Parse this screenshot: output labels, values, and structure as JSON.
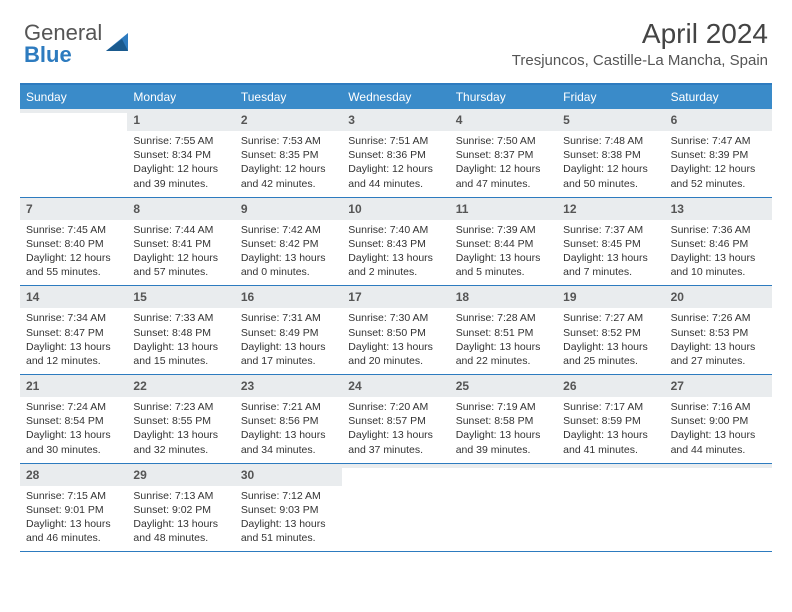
{
  "logo": {
    "word1": "General",
    "word2": "Blue"
  },
  "header": {
    "month_title": "April 2024",
    "location": "Tresjuncos, Castille-La Mancha, Spain"
  },
  "colors": {
    "brand_blue": "#2d7bbf",
    "header_bar": "#3a8bc9",
    "daynum_bg": "#e9ecee",
    "text": "#333333",
    "muted": "#555555"
  },
  "daysOfWeek": [
    "Sunday",
    "Monday",
    "Tuesday",
    "Wednesday",
    "Thursday",
    "Friday",
    "Saturday"
  ],
  "weeks": [
    [
      {
        "n": "",
        "lines": []
      },
      {
        "n": "1",
        "lines": [
          "Sunrise: 7:55 AM",
          "Sunset: 8:34 PM",
          "Daylight: 12 hours",
          "and 39 minutes."
        ]
      },
      {
        "n": "2",
        "lines": [
          "Sunrise: 7:53 AM",
          "Sunset: 8:35 PM",
          "Daylight: 12 hours",
          "and 42 minutes."
        ]
      },
      {
        "n": "3",
        "lines": [
          "Sunrise: 7:51 AM",
          "Sunset: 8:36 PM",
          "Daylight: 12 hours",
          "and 44 minutes."
        ]
      },
      {
        "n": "4",
        "lines": [
          "Sunrise: 7:50 AM",
          "Sunset: 8:37 PM",
          "Daylight: 12 hours",
          "and 47 minutes."
        ]
      },
      {
        "n": "5",
        "lines": [
          "Sunrise: 7:48 AM",
          "Sunset: 8:38 PM",
          "Daylight: 12 hours",
          "and 50 minutes."
        ]
      },
      {
        "n": "6",
        "lines": [
          "Sunrise: 7:47 AM",
          "Sunset: 8:39 PM",
          "Daylight: 12 hours",
          "and 52 minutes."
        ]
      }
    ],
    [
      {
        "n": "7",
        "lines": [
          "Sunrise: 7:45 AM",
          "Sunset: 8:40 PM",
          "Daylight: 12 hours",
          "and 55 minutes."
        ]
      },
      {
        "n": "8",
        "lines": [
          "Sunrise: 7:44 AM",
          "Sunset: 8:41 PM",
          "Daylight: 12 hours",
          "and 57 minutes."
        ]
      },
      {
        "n": "9",
        "lines": [
          "Sunrise: 7:42 AM",
          "Sunset: 8:42 PM",
          "Daylight: 13 hours",
          "and 0 minutes."
        ]
      },
      {
        "n": "10",
        "lines": [
          "Sunrise: 7:40 AM",
          "Sunset: 8:43 PM",
          "Daylight: 13 hours",
          "and 2 minutes."
        ]
      },
      {
        "n": "11",
        "lines": [
          "Sunrise: 7:39 AM",
          "Sunset: 8:44 PM",
          "Daylight: 13 hours",
          "and 5 minutes."
        ]
      },
      {
        "n": "12",
        "lines": [
          "Sunrise: 7:37 AM",
          "Sunset: 8:45 PM",
          "Daylight: 13 hours",
          "and 7 minutes."
        ]
      },
      {
        "n": "13",
        "lines": [
          "Sunrise: 7:36 AM",
          "Sunset: 8:46 PM",
          "Daylight: 13 hours",
          "and 10 minutes."
        ]
      }
    ],
    [
      {
        "n": "14",
        "lines": [
          "Sunrise: 7:34 AM",
          "Sunset: 8:47 PM",
          "Daylight: 13 hours",
          "and 12 minutes."
        ]
      },
      {
        "n": "15",
        "lines": [
          "Sunrise: 7:33 AM",
          "Sunset: 8:48 PM",
          "Daylight: 13 hours",
          "and 15 minutes."
        ]
      },
      {
        "n": "16",
        "lines": [
          "Sunrise: 7:31 AM",
          "Sunset: 8:49 PM",
          "Daylight: 13 hours",
          "and 17 minutes."
        ]
      },
      {
        "n": "17",
        "lines": [
          "Sunrise: 7:30 AM",
          "Sunset: 8:50 PM",
          "Daylight: 13 hours",
          "and 20 minutes."
        ]
      },
      {
        "n": "18",
        "lines": [
          "Sunrise: 7:28 AM",
          "Sunset: 8:51 PM",
          "Daylight: 13 hours",
          "and 22 minutes."
        ]
      },
      {
        "n": "19",
        "lines": [
          "Sunrise: 7:27 AM",
          "Sunset: 8:52 PM",
          "Daylight: 13 hours",
          "and 25 minutes."
        ]
      },
      {
        "n": "20",
        "lines": [
          "Sunrise: 7:26 AM",
          "Sunset: 8:53 PM",
          "Daylight: 13 hours",
          "and 27 minutes."
        ]
      }
    ],
    [
      {
        "n": "21",
        "lines": [
          "Sunrise: 7:24 AM",
          "Sunset: 8:54 PM",
          "Daylight: 13 hours",
          "and 30 minutes."
        ]
      },
      {
        "n": "22",
        "lines": [
          "Sunrise: 7:23 AM",
          "Sunset: 8:55 PM",
          "Daylight: 13 hours",
          "and 32 minutes."
        ]
      },
      {
        "n": "23",
        "lines": [
          "Sunrise: 7:21 AM",
          "Sunset: 8:56 PM",
          "Daylight: 13 hours",
          "and 34 minutes."
        ]
      },
      {
        "n": "24",
        "lines": [
          "Sunrise: 7:20 AM",
          "Sunset: 8:57 PM",
          "Daylight: 13 hours",
          "and 37 minutes."
        ]
      },
      {
        "n": "25",
        "lines": [
          "Sunrise: 7:19 AM",
          "Sunset: 8:58 PM",
          "Daylight: 13 hours",
          "and 39 minutes."
        ]
      },
      {
        "n": "26",
        "lines": [
          "Sunrise: 7:17 AM",
          "Sunset: 8:59 PM",
          "Daylight: 13 hours",
          "and 41 minutes."
        ]
      },
      {
        "n": "27",
        "lines": [
          "Sunrise: 7:16 AM",
          "Sunset: 9:00 PM",
          "Daylight: 13 hours",
          "and 44 minutes."
        ]
      }
    ],
    [
      {
        "n": "28",
        "lines": [
          "Sunrise: 7:15 AM",
          "Sunset: 9:01 PM",
          "Daylight: 13 hours",
          "and 46 minutes."
        ]
      },
      {
        "n": "29",
        "lines": [
          "Sunrise: 7:13 AM",
          "Sunset: 9:02 PM",
          "Daylight: 13 hours",
          "and 48 minutes."
        ]
      },
      {
        "n": "30",
        "lines": [
          "Sunrise: 7:12 AM",
          "Sunset: 9:03 PM",
          "Daylight: 13 hours",
          "and 51 minutes."
        ]
      },
      {
        "n": "",
        "lines": []
      },
      {
        "n": "",
        "lines": []
      },
      {
        "n": "",
        "lines": []
      },
      {
        "n": "",
        "lines": []
      }
    ]
  ]
}
